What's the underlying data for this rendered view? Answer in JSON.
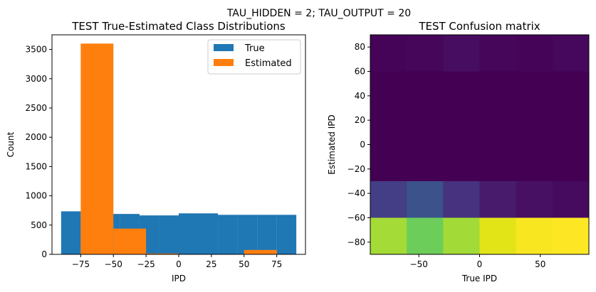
{
  "figure": {
    "suptitle": "TAU_HIDDEN = 2; TAU_OUTPUT = 20"
  },
  "chart_data": [
    {
      "type": "bar",
      "title": "TEST True-Estimated Class Distributions",
      "xlabel": "IPD",
      "ylabel": "Count",
      "xlim": [
        -97,
        97
      ],
      "ylim": [
        0,
        3750
      ],
      "xticks": [
        -75,
        -50,
        -25,
        0,
        25,
        50,
        75
      ],
      "xtick_labels": [
        "−75",
        "−50",
        "−25",
        "0",
        "25",
        "50",
        "75"
      ],
      "yticks": [
        0,
        500,
        1000,
        1500,
        2000,
        2500,
        3000,
        3500
      ],
      "legend": {
        "position": "top-right",
        "entries": [
          "True",
          "Estimated"
        ]
      },
      "series": [
        {
          "name": "True",
          "color": "#1f77b4",
          "bins": [
            {
              "x0": -90,
              "x1": -75,
              "value": 735
            },
            {
              "x0": -75,
              "x1": -60,
              "value": 735
            },
            {
              "x0": -60,
              "x1": -45,
              "value": 690
            },
            {
              "x0": -45,
              "x1": -30,
              "value": 690
            },
            {
              "x0": -30,
              "x1": -15,
              "value": 665
            },
            {
              "x0": -15,
              "x1": 0,
              "value": 665
            },
            {
              "x0": 0,
              "x1": 15,
              "value": 700
            },
            {
              "x0": 15,
              "x1": 30,
              "value": 700
            },
            {
              "x0": 30,
              "x1": 45,
              "value": 675
            },
            {
              "x0": 45,
              "x1": 60,
              "value": 675
            },
            {
              "x0": 60,
              "x1": 75,
              "value": 675
            },
            {
              "x0": 75,
              "x1": 90,
              "value": 675
            }
          ]
        },
        {
          "name": "Estimated",
          "color": "#ff7f0e",
          "bins": [
            {
              "x0": -75,
              "x1": -50,
              "value": 3600
            },
            {
              "x0": -50,
              "x1": -25,
              "value": 440
            },
            {
              "x0": -25,
              "x1": 0,
              "value": 15
            },
            {
              "x0": 50,
              "x1": 75,
              "value": 75
            }
          ]
        }
      ]
    },
    {
      "type": "heatmap",
      "title": "TEST Confusion matrix",
      "xlabel": "True IPD",
      "ylabel": "Estimated IPD",
      "xlim": [
        -90,
        90
      ],
      "ylim": [
        -90,
        90
      ],
      "xticks": [
        -50,
        0,
        50
      ],
      "xtick_labels": [
        "−50",
        "0",
        "50"
      ],
      "yticks": [
        -80,
        -60,
        -40,
        -20,
        0,
        20,
        40,
        60,
        80
      ],
      "ytick_labels": [
        "−80",
        "−60",
        "−40",
        "−20",
        "0",
        "20",
        "40",
        "60",
        "80"
      ],
      "x_edges": [
        -90,
        -60,
        -30,
        0,
        30,
        60,
        90
      ],
      "y_edges": [
        -90,
        -60,
        -30,
        0,
        30,
        60,
        90
      ],
      "cells_top_to_bottom": [
        [
          "#450457",
          "#46075a",
          "#470d60",
          "#46075a",
          "#450457",
          "#46085c"
        ],
        [
          "#440154",
          "#440154",
          "#440154",
          "#440154",
          "#440154",
          "#440154"
        ],
        [
          "#440154",
          "#440154",
          "#440154",
          "#440154",
          "#440154",
          "#440154"
        ],
        [
          "#440154",
          "#440154",
          "#440154",
          "#440154",
          "#440154",
          "#440154"
        ],
        [
          "#433e85",
          "#3b528b",
          "#46327e",
          "#481b6d",
          "#471063",
          "#460b5e"
        ],
        [
          "#a5db36",
          "#6ccd5a",
          "#a2da37",
          "#e2e418",
          "#f8e621",
          "#fde725"
        ]
      ]
    }
  ]
}
